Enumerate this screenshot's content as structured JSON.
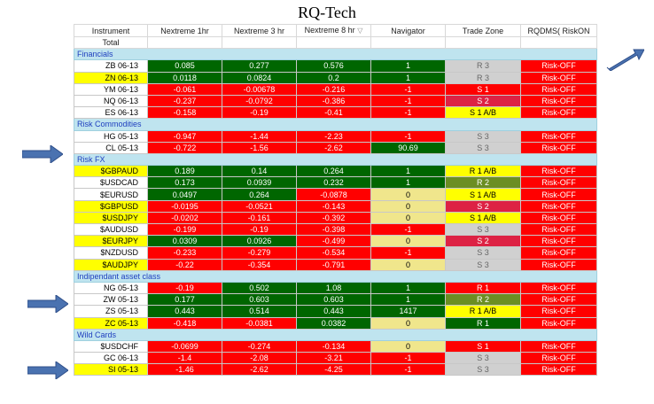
{
  "title": "RQ-Tech",
  "colors": {
    "green": "#006600",
    "red": "#FF0000",
    "yellow": "#FFFF00",
    "tan": "#F0E68C",
    "gray": "#D0D0D0",
    "pink": "#DD2244",
    "olive": "#6B8E23",
    "section": "#BFE4EF",
    "arrow": "#4A72B0"
  },
  "columns": [
    "Instrument",
    "Nextreme 1hr",
    "Nextreme 3 hr",
    "Nextreme 8 hr",
    "Navigator",
    "Trade Zone",
    "RQDMS( RiskON"
  ],
  "total_label": "Total",
  "sections": [
    {
      "name": "Financials",
      "rows": [
        {
          "inst": "ZB 06-13",
          "hl": false,
          "v1": "0.085",
          "c1": "green",
          "v3": "0.277",
          "c3": "green",
          "v8": "0.576",
          "c8": "green",
          "nav": "1",
          "cn": "green",
          "tz": "R 3",
          "ctz": "gray",
          "rq": "Risk-OFF",
          "crq": "red"
        },
        {
          "inst": "ZN 06-13",
          "hl": true,
          "v1": "0.0118",
          "c1": "green",
          "v3": "0.0824",
          "c3": "green",
          "v8": "0.2",
          "c8": "green",
          "nav": "1",
          "cn": "green",
          "tz": "R 3",
          "ctz": "gray",
          "rq": "Risk-OFF",
          "crq": "red"
        },
        {
          "inst": "YM 06-13",
          "hl": false,
          "v1": "-0.061",
          "c1": "red",
          "v3": "-0.00678",
          "c3": "red",
          "v8": "-0.216",
          "c8": "red",
          "nav": "-1",
          "cn": "red",
          "tz": "S 1",
          "ctz": "red",
          "rq": "Risk-OFF",
          "crq": "red"
        },
        {
          "inst": "NQ 06-13",
          "hl": false,
          "v1": "-0.237",
          "c1": "red",
          "v3": "-0.0792",
          "c3": "red",
          "v8": "-0.386",
          "c8": "red",
          "nav": "-1",
          "cn": "red",
          "tz": "S 2",
          "ctz": "pink",
          "rq": "Risk-OFF",
          "crq": "red"
        },
        {
          "inst": "ES 06-13",
          "hl": false,
          "v1": "-0.158",
          "c1": "red",
          "v3": "-0.19",
          "c3": "red",
          "v8": "-0.41",
          "c8": "red",
          "nav": "-1",
          "cn": "red",
          "tz": "S 1 A/B",
          "ctz": "yellowcell",
          "rq": "Risk-OFF",
          "crq": "red"
        }
      ]
    },
    {
      "name": "Risk Commodities",
      "rows": [
        {
          "inst": "HG 05-13",
          "hl": false,
          "v1": "-0.947",
          "c1": "red",
          "v3": "-1.44",
          "c3": "red",
          "v8": "-2.23",
          "c8": "red",
          "nav": "-1",
          "cn": "red",
          "tz": "S 3",
          "ctz": "gray",
          "rq": "Risk-OFF",
          "crq": "red"
        },
        {
          "inst": "CL 05-13",
          "hl": false,
          "v1": "-0.722",
          "c1": "red",
          "v3": "-1.56",
          "c3": "red",
          "v8": "-2.62",
          "c8": "red",
          "nav": "90.69",
          "cn": "green",
          "tz": "S 3",
          "ctz": "gray",
          "rq": "Risk-OFF",
          "crq": "red"
        }
      ]
    },
    {
      "name": "Risk FX",
      "rows": [
        {
          "inst": "$GBPAUD",
          "hl": true,
          "v1": "0.189",
          "c1": "green",
          "v3": "0.14",
          "c3": "green",
          "v8": "0.264",
          "c8": "green",
          "nav": "1",
          "cn": "green",
          "tz": "R 1 A/B",
          "ctz": "yellowcell",
          "rq": "Risk-OFF",
          "crq": "red"
        },
        {
          "inst": "$USDCAD",
          "hl": false,
          "v1": "0.173",
          "c1": "green",
          "v3": "0.0939",
          "c3": "green",
          "v8": "0.232",
          "c8": "green",
          "nav": "1",
          "cn": "green",
          "tz": "R 2",
          "ctz": "olive",
          "rq": "Risk-OFF",
          "crq": "red"
        },
        {
          "inst": "$EURUSD",
          "hl": false,
          "v1": "0.0497",
          "c1": "green",
          "v3": "0.264",
          "c3": "green",
          "v8": "-0.0878",
          "c8": "red",
          "nav": "0",
          "cn": "tan",
          "tz": "S 1 A/B",
          "ctz": "yellowcell",
          "rq": "Risk-OFF",
          "crq": "red"
        },
        {
          "inst": "$GBPUSD",
          "hl": true,
          "v1": "-0.0195",
          "c1": "red",
          "v3": "-0.0521",
          "c3": "red",
          "v8": "-0.143",
          "c8": "red",
          "nav": "0",
          "cn": "tan",
          "tz": "S 2",
          "ctz": "pink",
          "rq": "Risk-OFF",
          "crq": "red"
        },
        {
          "inst": "$USDJPY",
          "hl": true,
          "v1": "-0.0202",
          "c1": "red",
          "v3": "-0.161",
          "c3": "red",
          "v8": "-0.392",
          "c8": "red",
          "nav": "0",
          "cn": "tan",
          "tz": "S 1 A/B",
          "ctz": "yellowcell",
          "rq": "Risk-OFF",
          "crq": "red"
        },
        {
          "inst": "$AUDUSD",
          "hl": false,
          "v1": "-0.199",
          "c1": "red",
          "v3": "-0.19",
          "c3": "red",
          "v8": "-0.398",
          "c8": "red",
          "nav": "-1",
          "cn": "red",
          "tz": "S 3",
          "ctz": "gray",
          "rq": "Risk-OFF",
          "crq": "red"
        },
        {
          "inst": "$EURJPY",
          "hl": true,
          "v1": "0.0309",
          "c1": "green",
          "v3": "0.0926",
          "c3": "green",
          "v8": "-0.499",
          "c8": "red",
          "nav": "0",
          "cn": "tan",
          "tz": "S 2",
          "ctz": "pink",
          "rq": "Risk-OFF",
          "crq": "red"
        },
        {
          "inst": "$NZDUSD",
          "hl": false,
          "v1": "-0.233",
          "c1": "red",
          "v3": "-0.279",
          "c3": "red",
          "v8": "-0.534",
          "c8": "red",
          "nav": "-1",
          "cn": "red",
          "tz": "S 3",
          "ctz": "gray",
          "rq": "Risk-OFF",
          "crq": "red"
        },
        {
          "inst": "$AUDJPY",
          "hl": true,
          "v1": "-0.22",
          "c1": "red",
          "v3": "-0.354",
          "c3": "red",
          "v8": "-0.791",
          "c8": "red",
          "nav": "0",
          "cn": "tan",
          "tz": "S 3",
          "ctz": "gray",
          "rq": "Risk-OFF",
          "crq": "red"
        }
      ]
    },
    {
      "name": "Indipendant asset class",
      "rows": [
        {
          "inst": "NG 05-13",
          "hl": false,
          "v1": "-0.19",
          "c1": "red",
          "v3": "0.502",
          "c3": "green",
          "v8": "1.08",
          "c8": "green",
          "nav": "1",
          "cn": "green",
          "tz": "R 1",
          "ctz": "red",
          "rq": "Risk-OFF",
          "crq": "red"
        },
        {
          "inst": "ZW 05-13",
          "hl": false,
          "v1": "0.177",
          "c1": "green",
          "v3": "0.603",
          "c3": "green",
          "v8": "0.603",
          "c8": "green",
          "nav": "1",
          "cn": "green",
          "tz": "R 2",
          "ctz": "olive",
          "rq": "Risk-OFF",
          "crq": "red"
        },
        {
          "inst": "ZS 05-13",
          "hl": false,
          "v1": "0.443",
          "c1": "green",
          "v3": "0.514",
          "c3": "green",
          "v8": "0.443",
          "c8": "green",
          "nav": "1417",
          "cn": "green",
          "tz": "R 1 A/B",
          "ctz": "yellowcell",
          "rq": "Risk-OFF",
          "crq": "red"
        },
        {
          "inst": "ZC 05-13",
          "hl": true,
          "v1": "-0.418",
          "c1": "red",
          "v3": "-0.0381",
          "c3": "red",
          "v8": "0.0382",
          "c8": "green",
          "nav": "0",
          "cn": "tan",
          "tz": "R 1",
          "ctz": "green",
          "rq": "Risk-OFF",
          "crq": "red"
        }
      ]
    },
    {
      "name": "Wild Cards",
      "rows": [
        {
          "inst": "$USDCHF",
          "hl": false,
          "v1": "-0.0699",
          "c1": "red",
          "v3": "-0.274",
          "c3": "red",
          "v8": "-0.134",
          "c8": "red",
          "nav": "0",
          "cn": "tan",
          "tz": "S 1",
          "ctz": "red",
          "rq": "Risk-OFF",
          "crq": "red"
        },
        {
          "inst": "GC 06-13",
          "hl": false,
          "v1": "-1.4",
          "c1": "red",
          "v3": "-2.08",
          "c3": "red",
          "v8": "-3.21",
          "c8": "red",
          "nav": "-1",
          "cn": "red",
          "tz": "S 3",
          "ctz": "gray",
          "rq": "Risk-OFF",
          "crq": "red"
        },
        {
          "inst": "SI 05-13",
          "hl": true,
          "v1": "-1.46",
          "c1": "red",
          "v3": "-2.62",
          "c3": "red",
          "v8": "-4.25",
          "c8": "red",
          "nav": "-1",
          "cn": "red",
          "tz": "S 3",
          "ctz": "gray",
          "rq": "Risk-OFF",
          "crq": "red"
        }
      ]
    }
  ],
  "arrows": [
    "arrow-icon",
    "arrow-icon",
    "arrow-icon",
    "arrow-icon"
  ]
}
